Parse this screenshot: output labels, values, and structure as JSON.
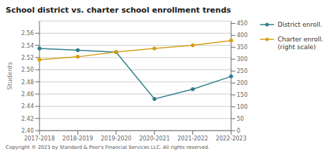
{
  "chart_data": {
    "type": "line",
    "title": "School district vs. charter school enrollment trends",
    "ylabel": "Students",
    "annotations": [
      "Copyright © 2023 by Standard & Poor's Financial Services LLC. All rights reserved."
    ],
    "categories": [
      "2017-2018",
      "2018-2019",
      "2019-2020",
      "2020-2021",
      "2021-2022",
      "2022-2023"
    ],
    "series": [
      {
        "name": "District enroll.",
        "color": "#2e7d8c",
        "marker": "circle",
        "line_style": "solid",
        "values": [
          2.535,
          2.532,
          2.529,
          2.452,
          2.468,
          2.489
        ]
      },
      {
        "name": "Charter enroll.\n(right scale)",
        "color": "#d4a017",
        "marker": "circle",
        "line_style": "solid",
        "axis": "y2",
        "values": [
          298,
          310,
          330,
          345,
          358,
          378
        ]
      }
    ],
    "ylim": [
      2.4,
      2.58
    ],
    "yticks": [
      {
        "value": 2.4,
        "label": "2.40"
      },
      2.42,
      2.44,
      2.46,
      2.48,
      {
        "value": 2.5,
        "label": "2.50"
      },
      2.52,
      2.54,
      2.56
    ],
    "y2lim": [
      0,
      460
    ],
    "y2ticks": [
      0,
      50,
      100,
      150,
      200,
      250,
      300,
      350,
      400,
      450
    ],
    "grid": true,
    "legend": "right"
  }
}
